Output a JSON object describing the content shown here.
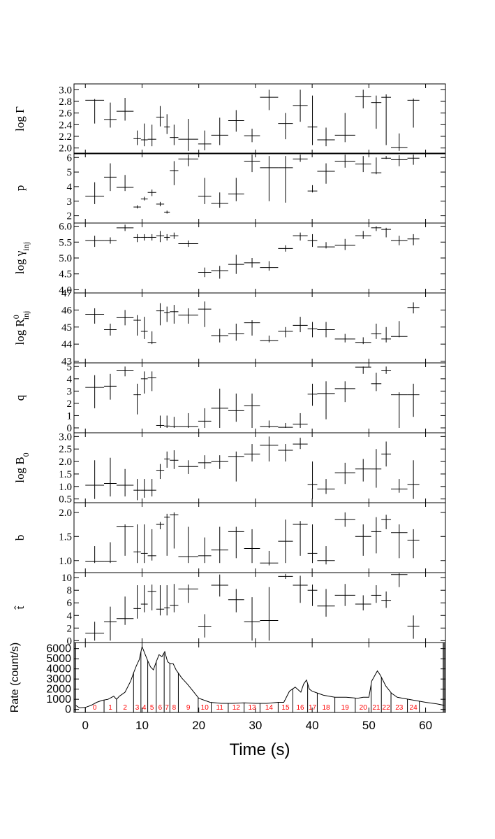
{
  "chart_data": {
    "type": "scatter",
    "x_axis": {
      "title": "Time (s)",
      "range": [
        -2,
        63.5
      ],
      "ticks": [
        0,
        10,
        20,
        30,
        40,
        50,
        60
      ],
      "tick_labels": [
        "0",
        "10",
        "20",
        "30",
        "40",
        "50",
        "60"
      ]
    },
    "bins": [
      [
        0,
        3.3
      ],
      [
        3.3,
        5.5
      ],
      [
        5.5,
        8.5
      ],
      [
        8.5,
        9.8
      ],
      [
        9.8,
        11
      ],
      [
        11,
        12.5
      ],
      [
        12.5,
        13.9
      ],
      [
        13.9,
        14.9
      ],
      [
        14.9,
        16.4
      ],
      [
        16.4,
        19.9
      ],
      [
        19.9,
        22.2
      ],
      [
        22.2,
        25.2
      ],
      [
        25.2,
        28
      ],
      [
        28,
        30.8
      ],
      [
        30.8,
        34
      ],
      [
        34,
        36.6
      ],
      [
        36.6,
        39.2
      ],
      [
        39.2,
        40.9
      ],
      [
        40.9,
        44
      ],
      [
        44,
        47.6
      ],
      [
        47.6,
        50.4
      ],
      [
        50.4,
        52.2
      ],
      [
        52.2,
        53.9
      ],
      [
        53.9,
        56.8
      ],
      [
        56.8,
        58.9
      ]
    ],
    "panels": [
      {
        "ylabel": "log Γ",
        "ylim": [
          1.9,
          3.1
        ],
        "yticks": [
          2.0,
          2.2,
          2.4,
          2.6,
          2.8,
          3.0
        ],
        "ytick_labels": [
          "2.0",
          "2.2",
          "2.4",
          "2.6",
          "2.8",
          "3.0"
        ],
        "values": [
          2.82,
          2.49,
          2.63,
          2.16,
          2.14,
          2.15,
          2.53,
          2.36,
          2.18,
          2.15,
          2.07,
          2.22,
          2.47,
          2.21,
          2.87,
          2.42,
          2.73,
          2.36,
          2.14,
          2.22,
          2.88,
          2.78,
          2.87,
          2.01,
          2.82
        ],
        "lo": [
          2.42,
          2.35,
          2.47,
          2.05,
          2.03,
          2.03,
          2.37,
          2.24,
          2.05,
          1.95,
          1.96,
          2.05,
          2.28,
          2.1,
          2.65,
          2.15,
          2.45,
          2.05,
          2.03,
          2.1,
          2.68,
          2.33,
          2.05,
          1.95,
          2.35
        ],
        "hi": [
          2.84,
          2.78,
          2.86,
          2.3,
          2.42,
          2.4,
          2.72,
          2.58,
          2.4,
          2.5,
          2.3,
          2.52,
          2.65,
          2.33,
          3.0,
          2.6,
          3.0,
          2.9,
          2.35,
          2.6,
          3.0,
          2.9,
          2.92,
          2.25,
          2.85
        ]
      },
      {
        "ylabel": "p",
        "ylim": [
          1.5,
          6.3
        ],
        "yticks": [
          2,
          3,
          4,
          5,
          6
        ],
        "ytick_labels": [
          "2",
          "3",
          "4",
          "5",
          "6"
        ],
        "values": [
          3.35,
          4.65,
          3.95,
          2.6,
          3.15,
          3.6,
          2.8,
          2.25,
          5.1,
          5.9,
          3.35,
          2.85,
          3.5,
          5.75,
          5.3,
          5.3,
          5.9,
          3.7,
          5.05,
          5.75,
          5.55,
          4.95,
          5.95,
          5.85,
          5.95
        ],
        "lo": [
          2.8,
          3.7,
          3.7,
          2.5,
          3.05,
          3.35,
          2.65,
          2.15,
          4.1,
          5.4,
          2.8,
          2.55,
          3.0,
          5.0,
          3.0,
          2.9,
          5.7,
          3.6,
          4.2,
          5.3,
          5.0,
          4.85,
          5.9,
          5.4,
          5.5
        ],
        "hi": [
          4.3,
          5.6,
          4.8,
          2.72,
          3.3,
          3.8,
          2.95,
          2.35,
          5.75,
          6.2,
          4.6,
          3.6,
          4.6,
          6.2,
          6.1,
          6.1,
          6.2,
          4.1,
          5.6,
          6.2,
          6.1,
          6.0,
          6.1,
          6.15,
          6.2
        ]
      },
      {
        "ylabel": "log γ_inj",
        "ylim": [
          3.9,
          6.1
        ],
        "yticks": [
          4.0,
          4.5,
          5.0,
          5.5,
          6.0
        ],
        "ytick_labels": [
          "4.0",
          "4.5",
          "5.0",
          "5.5",
          "6.0"
        ],
        "values": [
          5.55,
          5.55,
          5.95,
          5.65,
          5.65,
          5.65,
          5.7,
          5.65,
          5.7,
          5.45,
          4.55,
          4.6,
          4.8,
          4.85,
          4.7,
          5.3,
          5.7,
          5.55,
          5.35,
          5.4,
          5.7,
          5.95,
          5.9,
          5.55,
          5.6
        ],
        "lo": [
          5.35,
          5.45,
          5.85,
          5.5,
          5.55,
          5.55,
          5.5,
          5.55,
          5.6,
          5.35,
          4.4,
          4.35,
          4.5,
          4.7,
          4.6,
          5.2,
          5.55,
          5.35,
          5.3,
          5.25,
          5.6,
          5.85,
          5.65,
          5.4,
          5.4
        ],
        "hi": [
          5.7,
          5.65,
          6.05,
          5.75,
          5.75,
          5.75,
          5.85,
          5.75,
          5.8,
          5.55,
          4.7,
          4.75,
          5.1,
          5.0,
          4.9,
          5.4,
          5.8,
          5.75,
          5.5,
          5.6,
          5.85,
          6.0,
          5.95,
          5.7,
          5.75
        ]
      },
      {
        "ylabel": "log R_inj^0",
        "ylim": [
          42.9,
          47.0
        ],
        "yticks": [
          43,
          44,
          45,
          46,
          47
        ],
        "ytick_labels": [
          "43",
          "44",
          "45",
          "46",
          "47"
        ],
        "values": [
          45.75,
          44.85,
          45.55,
          45.4,
          44.75,
          44.1,
          45.95,
          45.85,
          45.9,
          45.7,
          46.05,
          44.5,
          44.6,
          45.25,
          44.2,
          44.75,
          45.1,
          44.9,
          44.85,
          44.3,
          44.1,
          44.6,
          44.3,
          44.45,
          46.15
        ],
        "lo": [
          45.2,
          44.5,
          45.1,
          44.5,
          44.3,
          44.0,
          45.1,
          45.3,
          45.2,
          45.2,
          45.0,
          44.1,
          44.2,
          44.5,
          44.1,
          44.4,
          44.7,
          44.4,
          44.4,
          44.1,
          44.0,
          44.3,
          44.1,
          44.4,
          45.8
        ],
        "hi": [
          46.1,
          45.2,
          46.0,
          45.7,
          45.6,
          44.75,
          46.4,
          46.2,
          46.3,
          46.1,
          46.5,
          44.9,
          45.2,
          45.4,
          44.5,
          45.0,
          45.6,
          45.3,
          45.3,
          44.6,
          44.4,
          45.2,
          45.0,
          45.35,
          46.45
        ]
      },
      {
        "ylabel": "q",
        "ylim": [
          -0.4,
          5.3
        ],
        "yticks": [
          0,
          1,
          2,
          3,
          4,
          5
        ],
        "ytick_labels": [
          "0",
          "1",
          "2",
          "3",
          "4",
          "5"
        ],
        "values": [
          3.3,
          3.4,
          4.7,
          2.7,
          4.0,
          4.1,
          0.2,
          0.15,
          0.1,
          0.1,
          0.55,
          1.6,
          1.4,
          1.8,
          0.1,
          0.05,
          0.3,
          2.75,
          2.8,
          3.2,
          4.95,
          3.6,
          4.7,
          2.7,
          2.7
        ],
        "lo": [
          1.6,
          2.3,
          4.2,
          1.1,
          2.8,
          3.0,
          0.0,
          0.0,
          0.0,
          0.0,
          0.0,
          0.0,
          0.5,
          0.0,
          0.0,
          0.0,
          0.0,
          1.8,
          0.7,
          2.1,
          4.4,
          3.0,
          4.4,
          0.0,
          0.9
        ],
        "hi": [
          4.3,
          4.4,
          5.0,
          3.6,
          4.6,
          4.6,
          1.0,
          1.0,
          0.9,
          1.2,
          1.6,
          3.2,
          2.8,
          2.8,
          0.6,
          0.4,
          1.2,
          3.6,
          3.8,
          3.8,
          5.0,
          4.5,
          5.0,
          2.9,
          3.6
        ]
      },
      {
        "ylabel": "log B_0",
        "ylim": [
          0.35,
          3.15
        ],
        "yticks": [
          0.5,
          1.0,
          1.5,
          2.0,
          2.5,
          3.0
        ],
        "ytick_labels": [
          "0.5",
          "1.0",
          "1.5",
          "2.0",
          "2.5",
          "3.0"
        ],
        "values": [
          1.05,
          1.12,
          1.05,
          0.85,
          0.85,
          0.85,
          1.65,
          2.1,
          2.05,
          1.8,
          1.95,
          2.0,
          2.2,
          2.3,
          2.65,
          2.45,
          2.7,
          1.08,
          0.9,
          1.55,
          1.7,
          1.7,
          2.3,
          0.9,
          1.08
        ],
        "lo": [
          0.5,
          0.6,
          0.6,
          0.45,
          0.55,
          0.6,
          1.3,
          1.75,
          1.7,
          1.5,
          1.7,
          1.7,
          1.2,
          2.0,
          2.0,
          2.0,
          2.5,
          0.5,
          0.7,
          1.1,
          1.2,
          0.95,
          1.8,
          0.75,
          0.5
        ],
        "hi": [
          2.05,
          2.15,
          1.7,
          1.3,
          1.3,
          1.3,
          1.9,
          2.4,
          2.45,
          2.05,
          2.25,
          2.25,
          2.4,
          2.7,
          3.0,
          2.7,
          2.95,
          2.0,
          1.3,
          1.95,
          2.1,
          2.5,
          2.8,
          1.3,
          2.05
        ]
      },
      {
        "ylabel": "b",
        "ylim": [
          0.75,
          2.2
        ],
        "yticks": [
          1.0,
          1.5,
          2.0
        ],
        "ytick_labels": [
          "1.0",
          "1.5",
          "2.0"
        ],
        "values": [
          0.98,
          0.98,
          1.7,
          1.18,
          1.15,
          1.1,
          1.75,
          1.9,
          1.95,
          1.08,
          1.1,
          1.22,
          1.6,
          1.25,
          0.95,
          1.4,
          1.75,
          1.15,
          1.0,
          1.85,
          1.5,
          1.6,
          1.85,
          1.58,
          1.42
        ],
        "lo": [
          0.95,
          0.95,
          1.1,
          0.95,
          0.95,
          1.0,
          1.65,
          1.1,
          1.25,
          0.95,
          0.95,
          0.95,
          1.05,
          0.95,
          0.9,
          0.95,
          1.1,
          0.95,
          0.92,
          1.7,
          1.1,
          1.15,
          1.65,
          1.05,
          1.05
        ],
        "hi": [
          1.3,
          1.38,
          1.75,
          1.75,
          1.75,
          1.65,
          1.8,
          1.97,
          2.0,
          1.7,
          1.48,
          1.7,
          1.7,
          1.65,
          1.2,
          1.85,
          1.82,
          1.75,
          1.3,
          2.0,
          1.75,
          1.9,
          1.95,
          1.75,
          1.65
        ]
      },
      {
        "ylabel": "t̂",
        "ylim": [
          -0.3,
          10.8
        ],
        "yticks": [
          0,
          2,
          4,
          6,
          8,
          10
        ],
        "ytick_labels": [
          "0",
          "2",
          "4",
          "6",
          "8",
          "10"
        ],
        "values": [
          1.2,
          3.0,
          3.5,
          5.1,
          5.8,
          7.8,
          5.0,
          5.2,
          5.6,
          8.2,
          2.2,
          8.8,
          6.5,
          3.0,
          3.2,
          10.2,
          8.8,
          8.0,
          5.5,
          7.2,
          5.8,
          7.2,
          6.4,
          10.5,
          2.3
        ],
        "lo": [
          0.0,
          0.0,
          2.5,
          3.5,
          4.5,
          4.8,
          4.0,
          4.0,
          4.5,
          6.0,
          0.5,
          7.0,
          4.5,
          0.0,
          0.0,
          9.8,
          6.0,
          5.5,
          3.8,
          5.5,
          4.8,
          6.0,
          5.2,
          8.5,
          0.3
        ],
        "hi": [
          3.0,
          5.4,
          7.0,
          8.8,
          8.8,
          8.9,
          8.8,
          8.8,
          9.0,
          8.9,
          4.2,
          10.5,
          8.2,
          6.9,
          8.5,
          10.6,
          10.3,
          8.9,
          8.2,
          9.0,
          7.2,
          8.8,
          7.8,
          10.7,
          4.0
        ]
      }
    ],
    "rate_panel": {
      "ylabel": "Rate (count/s)",
      "ylim": [
        -300,
        6600
      ],
      "yticks": [
        0,
        1000,
        2000,
        3000,
        4000,
        5000,
        6000
      ],
      "ytick_labels": [
        "0",
        "1000",
        "2000",
        "3000",
        "4000",
        "5000",
        "6000"
      ],
      "light_curve": {
        "t": [
          -1.7,
          -1,
          0,
          1,
          2,
          3,
          4,
          5,
          5.5,
          6,
          7,
          8,
          8.5,
          9,
          9.5,
          10,
          10.5,
          11,
          11.5,
          12,
          12.5,
          13,
          13.5,
          14,
          14.5,
          15,
          15.5,
          16,
          17,
          18,
          19,
          20,
          22,
          24,
          26,
          28,
          30,
          32,
          34,
          35,
          36,
          37,
          38,
          38.5,
          39,
          39.5,
          40,
          41,
          42,
          44,
          46,
          48,
          49,
          50,
          50.5,
          51,
          51.5,
          52,
          53,
          54,
          55,
          56,
          58,
          60,
          62,
          63.3
        ],
        "rate": [
          400,
          150,
          200,
          400,
          700,
          900,
          1000,
          1300,
          1000,
          1300,
          1700,
          2800,
          3600,
          4300,
          4900,
          6200,
          5500,
          4800,
          4200,
          3900,
          4700,
          5400,
          5200,
          5700,
          4700,
          4500,
          4500,
          3900,
          3100,
          2500,
          1800,
          1100,
          700,
          600,
          600,
          650,
          600,
          600,
          700,
          700,
          1800,
          2200,
          1700,
          2500,
          2900,
          2000,
          1800,
          1600,
          1400,
          1200,
          1200,
          1100,
          1200,
          1200,
          2800,
          3300,
          3800,
          3400,
          2300,
          1600,
          1200,
          1100,
          900,
          700,
          550,
          400
        ]
      },
      "segment_labels": [
        "0",
        "1",
        "2",
        "3",
        "4",
        "5",
        "6",
        "7",
        "8",
        "9",
        "10",
        "11",
        "12",
        "13",
        "14",
        "15",
        "16",
        "17",
        "18",
        "19",
        "20",
        "21",
        "22",
        "23",
        "24"
      ],
      "segment_color": "#ff0000"
    }
  }
}
